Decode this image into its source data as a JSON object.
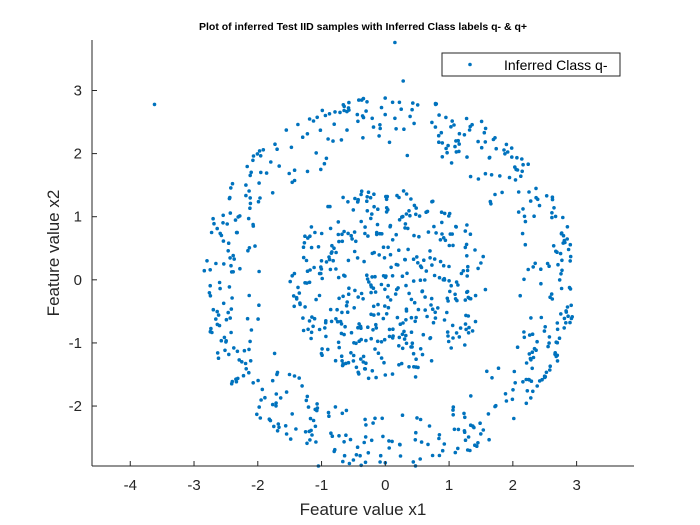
{
  "chart_data": {
    "type": "scatter",
    "title": "Plot of inferred Test IID samples with Inferred Class labels q- & q+",
    "xlabel": "Feature value x1",
    "ylabel": "Feature value x2",
    "xlim": [
      -4.6,
      3.9
    ],
    "ylim": [
      -2.95,
      3.8
    ],
    "xticks": [
      -4,
      -3,
      -2,
      -1,
      0,
      1,
      2,
      3
    ],
    "yticks": [
      -2,
      -1,
      0,
      1,
      2,
      3
    ],
    "xtick_labels": [
      "-4",
      "-3",
      "-2",
      "-1",
      "0",
      "1",
      "2",
      "3"
    ],
    "ytick_labels": [
      "-2",
      "-1",
      "0",
      "1",
      "2",
      "3"
    ],
    "grid": false,
    "legend_position": "top-right",
    "point_color": "#0072BD",
    "series": [
      {
        "name": "Inferred Class q-",
        "description_points": "Annulus-shaped cloud of ~900 samples (outer radius ~2.95, hollow near r~1.6-2.0) plus outliers",
        "points": [
          [
            -3.62,
            2.78
          ],
          [
            0.15,
            3.76
          ],
          [
            0.28,
            3.15
          ],
          [
            -1.05,
            -2.95
          ],
          [
            0.0,
            -2.9
          ],
          [
            2.9,
            0.3
          ]
        ]
      }
    ]
  }
}
